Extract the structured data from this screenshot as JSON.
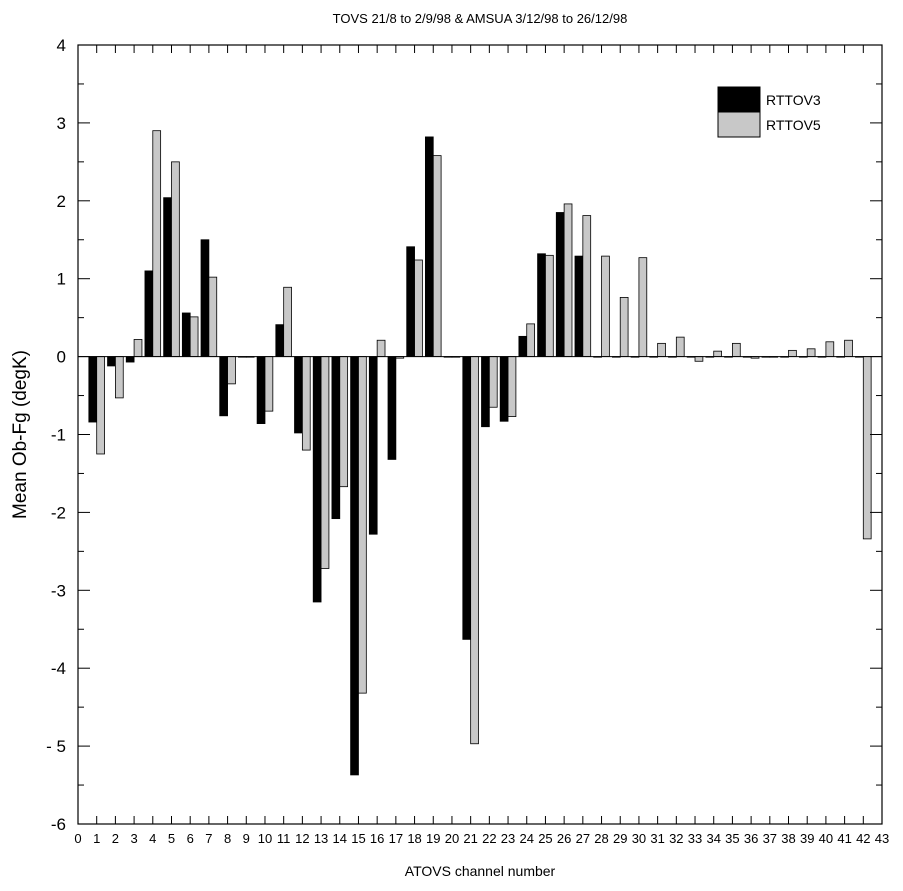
{
  "chart_data": {
    "type": "bar",
    "title": "TOVS 21/8 to 2/9/98 & AMSUA 3/12/98 to 26/12/98",
    "xlabel": "ATOVS channel number",
    "ylabel": "Mean Ob-Fg (degK)",
    "ylim": [
      -6,
      4
    ],
    "xlim": [
      0,
      43
    ],
    "xticks": [
      0,
      1,
      2,
      3,
      4,
      5,
      6,
      7,
      8,
      9,
      10,
      11,
      12,
      13,
      14,
      15,
      16,
      17,
      18,
      19,
      20,
      21,
      22,
      23,
      24,
      25,
      26,
      27,
      28,
      29,
      30,
      31,
      32,
      33,
      34,
      35,
      36,
      37,
      38,
      39,
      40,
      41,
      42,
      43
    ],
    "ytick_values": [
      4,
      3,
      2,
      1,
      0,
      -1,
      -2,
      -3,
      -4,
      -5,
      -6
    ],
    "ytick_labels": [
      "4",
      "3",
      "2",
      "1",
      "0",
      "-1",
      "-2",
      "-3",
      "-4",
      "- 5",
      "-6"
    ],
    "categories": [
      1,
      2,
      3,
      4,
      5,
      6,
      7,
      8,
      9,
      10,
      11,
      12,
      13,
      14,
      15,
      16,
      17,
      18,
      19,
      20,
      21,
      22,
      23,
      24,
      25,
      26,
      27,
      28,
      29,
      30,
      31,
      32,
      33,
      34,
      35,
      36,
      37,
      38,
      39,
      40,
      41,
      42
    ],
    "series": [
      {
        "name": "RTTOV3",
        "color": "#000000",
        "values": [
          -0.84,
          -0.12,
          -0.07,
          1.1,
          2.04,
          0.56,
          1.5,
          -0.76,
          0,
          -0.86,
          0.41,
          -0.98,
          -3.15,
          -2.08,
          -5.37,
          -2.28,
          -1.32,
          1.41,
          2.82,
          0,
          -3.63,
          -0.9,
          -0.83,
          0.26,
          1.32,
          1.85,
          1.29,
          0,
          0,
          0,
          0,
          0,
          0,
          0,
          0,
          0,
          0,
          0,
          0,
          0,
          0,
          0
        ]
      },
      {
        "name": "RTTOV5",
        "color": "#c8c8c8",
        "values": [
          -1.25,
          -0.53,
          0.22,
          2.9,
          2.5,
          0.51,
          1.02,
          -0.35,
          0,
          -0.7,
          0.89,
          -1.2,
          -2.72,
          -1.67,
          -4.32,
          0.21,
          -0.02,
          1.24,
          2.58,
          0,
          -4.97,
          -0.65,
          -0.77,
          0.42,
          1.3,
          1.96,
          1.81,
          1.29,
          0.76,
          1.27,
          0.17,
          0.25,
          -0.06,
          0.07,
          0.17,
          -0.02,
          0,
          0.08,
          0.1,
          0.19,
          0.21,
          -2.34
        ]
      }
    ],
    "legend_position": "top-right",
    "grid": false
  }
}
